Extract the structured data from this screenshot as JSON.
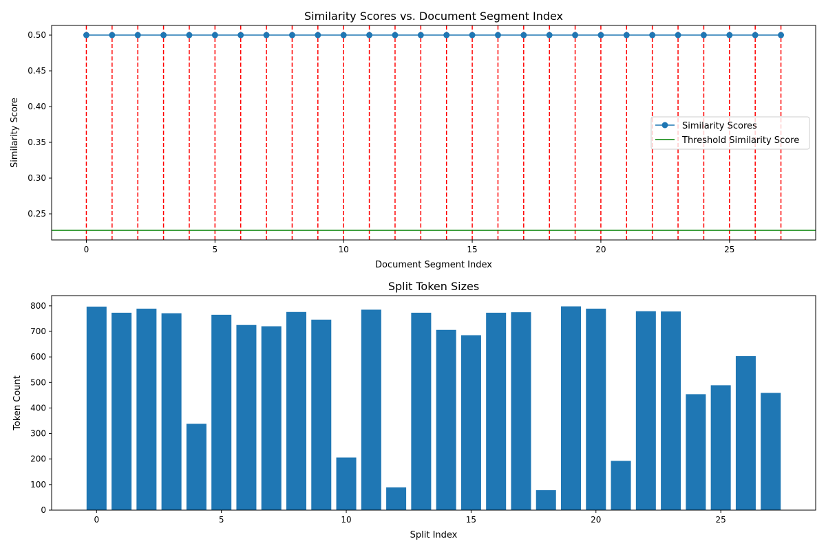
{
  "chart_data": [
    {
      "type": "line",
      "title": "Similarity Scores vs. Document Segment Index",
      "xlabel": "Document Segment Index",
      "ylabel": "Similarity Score",
      "xlim": [
        -1.35,
        28.35
      ],
      "ylim": [
        0.2135,
        0.5135
      ],
      "xticks": [
        0,
        5,
        10,
        15,
        20,
        25
      ],
      "yticks": [
        0.25,
        0.3,
        0.35,
        0.4,
        0.45,
        0.5
      ],
      "ytick_labels": [
        "0.25",
        "0.30",
        "0.35",
        "0.40",
        "0.45",
        "0.50"
      ],
      "grid": false,
      "legend_position": "center-right",
      "series": [
        {
          "name": "Similarity Scores",
          "kind": "line-markers",
          "color": "#1f77b4",
          "x": [
            0,
            1,
            2,
            3,
            4,
            5,
            6,
            7,
            8,
            9,
            10,
            11,
            12,
            13,
            14,
            15,
            16,
            17,
            18,
            19,
            20,
            21,
            22,
            23,
            24,
            25,
            26,
            27
          ],
          "y": [
            0.5,
            0.5,
            0.5,
            0.5,
            0.5,
            0.5,
            0.5,
            0.5,
            0.5,
            0.5,
            0.5,
            0.5,
            0.5,
            0.5,
            0.5,
            0.5,
            0.5,
            0.5,
            0.5,
            0.5,
            0.5,
            0.5,
            0.5,
            0.5,
            0.5,
            0.5,
            0.5,
            0.5
          ]
        },
        {
          "name": "Threshold Similarity Score",
          "kind": "hline",
          "color": "#008000",
          "y": 0.227
        }
      ],
      "split_lines": {
        "color": "#ff0000",
        "style": "dashed",
        "x": [
          0,
          1,
          2,
          3,
          4,
          5,
          6,
          7,
          8,
          9,
          10,
          11,
          12,
          13,
          14,
          15,
          16,
          17,
          18,
          19,
          20,
          21,
          22,
          23,
          24,
          25,
          26,
          27
        ]
      }
    },
    {
      "type": "bar",
      "title": "Split Token Sizes",
      "xlabel": "Split Index",
      "ylabel": "Token Count",
      "xlim": [
        -1.8,
        28.8
      ],
      "ylim": [
        0,
        840
      ],
      "xticks": [
        0,
        5,
        10,
        15,
        20,
        25
      ],
      "yticks": [
        0,
        100,
        200,
        300,
        400,
        500,
        600,
        700,
        800
      ],
      "grid": false,
      "color": "#1f77b4",
      "categories": [
        0,
        1,
        2,
        3,
        4,
        5,
        6,
        7,
        8,
        9,
        10,
        11,
        12,
        13,
        14,
        15,
        16,
        17,
        18,
        19,
        20,
        21,
        22,
        23,
        24,
        25,
        26,
        27
      ],
      "values": [
        797,
        773,
        789,
        771,
        338,
        765,
        725,
        720,
        776,
        746,
        206,
        785,
        89,
        773,
        706,
        685,
        773,
        775,
        78,
        798,
        789,
        193,
        779,
        778,
        454,
        489,
        603,
        459
      ]
    }
  ]
}
